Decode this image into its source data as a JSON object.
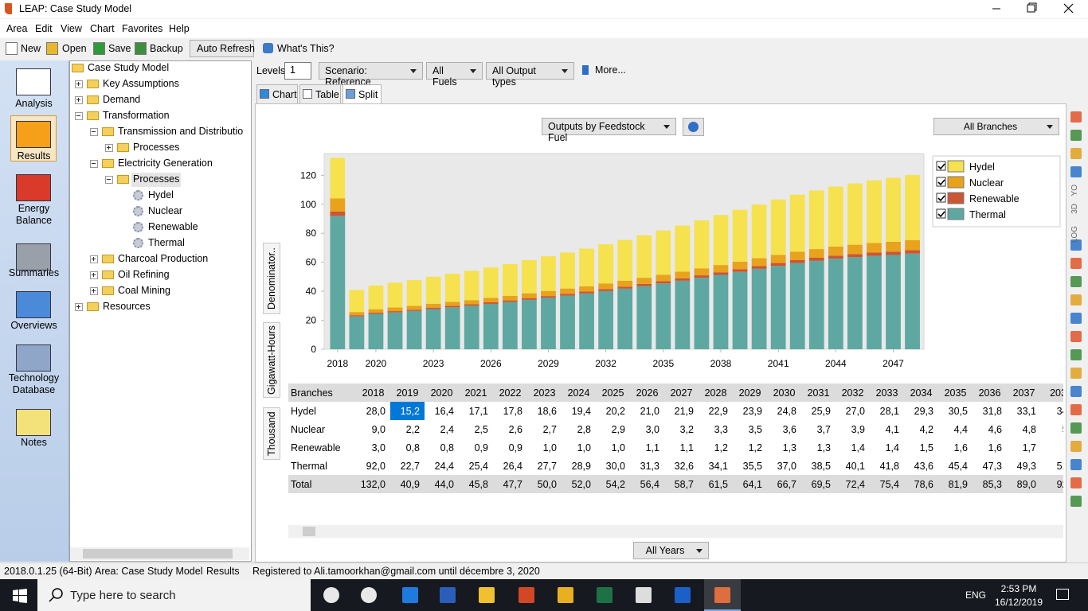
{
  "window": {
    "title": "LEAP: Case Study Model"
  },
  "menu": [
    "Area",
    "Edit",
    "View",
    "Chart",
    "Favorites",
    "Help"
  ],
  "toolbar": [
    "New",
    "Open",
    "Save",
    "Backup",
    "Auto Refresh",
    "What's This?"
  ],
  "sidebar": [
    "Analysis",
    "Results",
    "Energy Balance",
    "Summaries",
    "Overviews",
    "Technology Database",
    "Notes"
  ],
  "tree": [
    "Case Study Model",
    "Key Assumptions",
    "Demand",
    "Transformation",
    "Transmission and Distributio",
    "Processes",
    "Electricity Generation",
    "Processes",
    "Hydel",
    "Nuclear",
    "Renewable",
    "Thermal",
    "Charcoal Production",
    "Oil Refining",
    "Coal Mining",
    "Resources"
  ],
  "controls": {
    "levels_label": "Levels:",
    "levels": "1",
    "scenario": "Scenario: Reference",
    "fuels": "All Fuels",
    "output_types": "All Output types",
    "more": "More..."
  },
  "tabs": [
    "Chart",
    "Table",
    "Split"
  ],
  "chart_controls": {
    "view": "Outputs by Feedstock Fuel",
    "branches": "All Branches"
  },
  "side_labels": [
    "Denominator..",
    "Gigawatt-Hours",
    "Thousand"
  ],
  "right_tools": [
    "YO",
    "3D",
    "LOG"
  ],
  "chart_data": {
    "type": "stacked_bar",
    "x": [
      2018,
      2019,
      2020,
      2021,
      2022,
      2023,
      2024,
      2025,
      2026,
      2027,
      2028,
      2029,
      2030,
      2031,
      2032,
      2033,
      2034,
      2035,
      2036,
      2037,
      2038,
      2039,
      2040,
      2041,
      2042,
      2043,
      2044,
      2045,
      2046,
      2047,
      2048
    ],
    "xlim": [
      2017.3,
      2048.6
    ],
    "xticks": [
      2018,
      2020,
      2023,
      2026,
      2029,
      2032,
      2035,
      2038,
      2041,
      2044,
      2047
    ],
    "ylim": [
      0,
      135
    ],
    "yticks": [
      0,
      20,
      40,
      60,
      80,
      100,
      120
    ],
    "grid": false,
    "legend": "right",
    "series": [
      {
        "name": "Hydel",
        "color": "#f6e14e",
        "values": [
          28.0,
          15.2,
          16.4,
          17.1,
          17.8,
          18.6,
          19.4,
          20.2,
          21.0,
          21.9,
          22.9,
          23.9,
          24.8,
          25.9,
          27.0,
          28.1,
          29.3,
          30.5,
          31.8,
          33.1,
          34.5,
          35.8,
          37.0,
          38.2,
          39.3,
          40.4,
          41.4,
          42.3,
          43.2,
          44.1,
          44.9
        ]
      },
      {
        "name": "Nuclear",
        "color": "#e8a21c",
        "values": [
          9.0,
          2.2,
          2.4,
          2.5,
          2.6,
          2.7,
          2.8,
          2.9,
          3.0,
          3.2,
          3.3,
          3.5,
          3.6,
          3.7,
          3.9,
          4.1,
          4.2,
          4.4,
          4.6,
          4.8,
          5.0,
          5.2,
          5.4,
          5.6,
          5.8,
          6.0,
          6.2,
          6.4,
          6.6,
          6.8,
          7.0
        ]
      },
      {
        "name": "Renewable",
        "color": "#cb5634",
        "values": [
          3.0,
          0.8,
          0.8,
          0.9,
          0.9,
          1.0,
          1.0,
          1.0,
          1.1,
          1.1,
          1.2,
          1.2,
          1.3,
          1.3,
          1.4,
          1.4,
          1.5,
          1.6,
          1.6,
          1.7,
          1.8,
          1.8,
          1.9,
          2.0,
          2.0,
          2.1,
          2.1,
          2.2,
          2.2,
          2.3,
          2.3
        ]
      },
      {
        "name": "Thermal",
        "color": "#5ea8a1",
        "values": [
          92.0,
          22.7,
          24.4,
          25.4,
          26.4,
          27.7,
          28.9,
          30.0,
          31.3,
          32.6,
          34.1,
          35.5,
          37.0,
          38.5,
          40.1,
          41.8,
          43.6,
          45.4,
          47.3,
          49.3,
          51.3,
          53.4,
          55.5,
          57.5,
          59.5,
          61.0,
          62.5,
          63.5,
          64.5,
          65.0,
          66.0
        ]
      }
    ]
  },
  "table": {
    "header": [
      "Branches",
      "2018",
      "2019",
      "2020",
      "2021",
      "2022",
      "2023",
      "2024",
      "2025",
      "2026",
      "2027",
      "2028",
      "2029",
      "2030",
      "2031",
      "2032",
      "2033",
      "2034",
      "2035",
      "2036",
      "2037",
      "203"
    ],
    "rows": [
      [
        "Hydel",
        "28,0",
        "15,2",
        "16,4",
        "17,1",
        "17,8",
        "18,6",
        "19,4",
        "20,2",
        "21,0",
        "21,9",
        "22,9",
        "23,9",
        "24,8",
        "25,9",
        "27,0",
        "28,1",
        "29,3",
        "30,5",
        "31,8",
        "33,1",
        "34,"
      ],
      [
        "Nuclear",
        "9,0",
        "2,2",
        "2,4",
        "2,5",
        "2,6",
        "2,7",
        "2,8",
        "2,9",
        "3,0",
        "3,2",
        "3,3",
        "3,5",
        "3,6",
        "3,7",
        "3,9",
        "4,1",
        "4,2",
        "4,4",
        "4,6",
        "4,8",
        "5,"
      ],
      [
        "Renewable",
        "3,0",
        "0,8",
        "0,8",
        "0,9",
        "0,9",
        "1,0",
        "1,0",
        "1,0",
        "1,1",
        "1,1",
        "1,2",
        "1,2",
        "1,3",
        "1,3",
        "1,4",
        "1,4",
        "1,5",
        "1,6",
        "1,6",
        "1,7"
      ],
      [
        "Thermal",
        "92,0",
        "22,7",
        "24,4",
        "25,4",
        "26,4",
        "27,7",
        "28,9",
        "30,0",
        "31,3",
        "32,6",
        "34,1",
        "35,5",
        "37,0",
        "38,5",
        "40,1",
        "41,8",
        "43,6",
        "45,4",
        "47,3",
        "49,3",
        "51,"
      ],
      [
        "Total",
        "132,0",
        "40,9",
        "44,0",
        "45,8",
        "47,7",
        "50,0",
        "52,0",
        "54,2",
        "56,4",
        "58,7",
        "61,5",
        "64,1",
        "66,7",
        "69,5",
        "72,4",
        "75,4",
        "78,6",
        "81,9",
        "85,3",
        "89,0",
        "92,"
      ]
    ]
  },
  "footer": {
    "years": "All Years"
  },
  "status": [
    "2018.0.1.25 (64-Bit)",
    "Area: Case Study Model",
    "Results",
    "Registered to Ali.tamoorkhan@gmail.com until décembre 3, 2020"
  ],
  "taskbar": {
    "search": "Type here to search",
    "lang": "ENG",
    "time": "2:53 PM",
    "date": "16/12/2019"
  }
}
